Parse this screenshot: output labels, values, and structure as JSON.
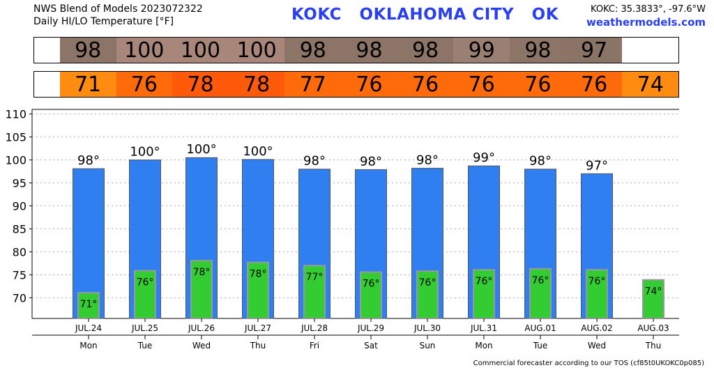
{
  "header": {
    "line1": "NWS Blend of Models 2023072322",
    "line2": "Daily HI/LO Temperature [°F]",
    "station": "KOKC   OKLAHOMA CITY   OK",
    "coords": "KOKC: 35.3833°, -97.6°W",
    "site": "weathermodels.com"
  },
  "strips": {
    "hi": [
      "98",
      "100",
      "100",
      "100",
      "98",
      "98",
      "98",
      "99",
      "98",
      "97",
      ""
    ],
    "hi_colors": [
      "#8c7466",
      "#a8877a",
      "#a8877a",
      "#a8877a",
      "#8c7466",
      "#8c7466",
      "#8c7466",
      "#9a8072",
      "#8c7466",
      "#8a7466",
      "#ffffff"
    ],
    "lo": [
      "71",
      "76",
      "78",
      "78",
      "77",
      "76",
      "76",
      "76",
      "76",
      "76",
      "74"
    ],
    "lo_colors": [
      "#ff8c10",
      "#ff6a0a",
      "#ff5a0a",
      "#ff5a0a",
      "#ff6a0a",
      "#ff6a0a",
      "#ff6a0a",
      "#ff6a0a",
      "#ff6a0a",
      "#ff6a0a",
      "#ff8c10"
    ]
  },
  "chart_data": {
    "type": "bar",
    "categories": [
      "JUL.24",
      "JUL.25",
      "JUL.26",
      "JUL.27",
      "JUL.28",
      "JUL.29",
      "JUL.30",
      "JUL.31",
      "AUG.01",
      "AUG.02",
      "AUG.03"
    ],
    "weekdays": [
      "Mon",
      "Tue",
      "Wed",
      "Thu",
      "Fri",
      "Sat",
      "Sun",
      "Mon",
      "Tue",
      "Wed",
      "Thu"
    ],
    "series": [
      {
        "values": [
          98.1,
          100,
          100.5,
          100.1,
          98,
          97.9,
          98.2,
          98.7,
          98,
          97,
          null
        ],
        "labels": [
          "98°",
          "100°",
          "100°",
          "100°",
          "98°",
          "98°",
          "98°",
          "99°",
          "98°",
          "97°",
          ""
        ],
        "color": "#2f7ff0"
      },
      {
        "values": [
          71.1,
          75.9,
          78.1,
          77.7,
          77,
          75.6,
          75.8,
          76.1,
          76.3,
          76.1,
          73.9
        ],
        "labels": [
          "71°",
          "76°",
          "78°",
          "78°",
          "77°",
          "76°",
          "76°",
          "76°",
          "76°",
          "76°",
          "74°"
        ],
        "color": "#33cc33"
      }
    ],
    "yticks": [
      70,
      75,
      80,
      85,
      90,
      95,
      100,
      105,
      110
    ],
    "ylim": [
      65.5,
      111
    ],
    "grid": true,
    "title": "",
    "xlabel": "",
    "ylabel": ""
  },
  "footer": "Commercial forecaster according to our TOS (cf85t0UKOKC0p085)"
}
